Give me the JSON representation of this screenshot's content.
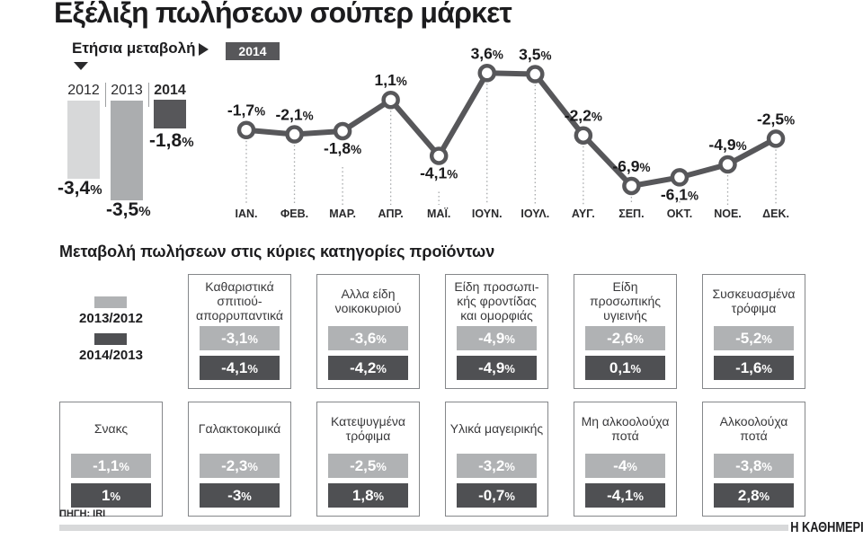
{
  "title": "Εξέλιξη πωλήσεων σούπερ μάρκετ",
  "percent_sign": "%",
  "annual": {
    "label": "Ετήσια μεταβολή",
    "bars": [
      {
        "year": "2012",
        "label": "-3,4"
      },
      {
        "year": "2013",
        "label": "-3,5"
      },
      {
        "year": "2014",
        "label": "-1,8"
      }
    ]
  },
  "categories": {
    "heading": "Μεταβολή πωλήσεων στις κύριες κατηγορίες προϊόντων",
    "legend": [
      {
        "label": "2013/2012",
        "color": "#b0b2b4"
      },
      {
        "label": "2014/2013",
        "color": "#4f5053"
      }
    ],
    "row1": [
      {
        "title": "Καθαριστικά σπιτιού-απορρυπαντικά",
        "light": "-3,1",
        "dark": "-4,1"
      },
      {
        "title": "Αλλα είδη νοικοκυριού",
        "light": "-3,6",
        "dark": "-4,2"
      },
      {
        "title": "Είδη προσωπι- κής φροντίδας και ομορφιάς",
        "light": "-4,9",
        "dark": "-4,9"
      },
      {
        "title": "Είδη προσωπικής υγιεινής",
        "light": "-2,6",
        "dark": "0,1"
      },
      {
        "title": "Συσκευασμένα τρόφιμα",
        "light": "-5,2",
        "dark": "-1,6"
      }
    ],
    "row2": [
      {
        "title": "Σνακς",
        "light": "-1,1",
        "dark": "1"
      },
      {
        "title": "Γαλακτοκομικά",
        "light": "-2,3",
        "dark": "-3"
      },
      {
        "title": "Κατεψυγμένα τρόφιμα",
        "light": "-2,5",
        "dark": "1,8"
      },
      {
        "title": "Υλικά μαγειρικής",
        "light": "-3,2",
        "dark": "-0,7"
      },
      {
        "title": "Μη αλκοολούχα ποτά",
        "light": "-4",
        "dark": "-4,1"
      },
      {
        "title": "Αλκοολούχα ποτά",
        "light": "-3,8",
        "dark": "2,8"
      }
    ]
  },
  "footer": {
    "source": "ΠΗΓΗ: IRI",
    "brand": "Η ΚΑΘΗΜΕΡΙΝΗ"
  },
  "colors": {
    "dark_gray": "#57575a",
    "mid_gray": "#abadaf",
    "light_gray": "#d7d8d9",
    "bar_light": "#b0b2b4",
    "bar_dark": "#4f5053",
    "text": "#1c1c1e"
  },
  "chart_data": [
    {
      "type": "bar",
      "title": "Ετήσια μεταβολή",
      "categories": [
        "2012",
        "2013",
        "2014"
      ],
      "values": [
        -3.4,
        -3.5,
        -1.8
      ],
      "unit": "%",
      "ylim": [
        -4,
        0
      ]
    },
    {
      "type": "line",
      "title": "2014",
      "x": [
        "ΙΑΝ.",
        "ΦΕΒ.",
        "ΜΑΡ.",
        "ΑΠΡ.",
        "ΜΑΪ.",
        "ΙΟΥΝ.",
        "ΙΟΥΛ.",
        "ΑΥΓ.",
        "ΣΕΠ.",
        "ΟΚΤ.",
        "ΝΟΕ.",
        "ΔΕΚ."
      ],
      "values": [
        -1.7,
        -2.1,
        -1.8,
        1.1,
        -4.1,
        3.6,
        3.5,
        -2.2,
        -6.9,
        -6.1,
        -4.9,
        -2.5
      ],
      "labels": [
        "-1,7",
        "-2,1",
        "-1,8",
        "1,1",
        "-4,1",
        "3,6",
        "3,5",
        "-2,2",
        "-6,9",
        "-6,1",
        "-4,9",
        "-2,5"
      ],
      "label_position": [
        "above",
        "above",
        "below",
        "above",
        "below",
        "above",
        "above",
        "above",
        "above",
        "below",
        "above",
        "above"
      ],
      "unit": "%",
      "ylim": [
        -8,
        5
      ],
      "grid": false,
      "legend_position": "top-left"
    },
    {
      "type": "bar",
      "title": "Μεταβολή πωλήσεων στις κύριες κατηγορίες προϊόντων",
      "categories": [
        "Καθαριστικά σπιτιού-απορρυπαντικά",
        "Αλλα είδη νοικοκυριού",
        "Είδη προσωπικής φροντίδας και ομορφιάς",
        "Είδη προσωπικής υγιεινής",
        "Συσκευασμένα τρόφιμα",
        "Σνακς",
        "Γαλακτοκομικά",
        "Κατεψυγμένα τρόφιμα",
        "Υλικά μαγειρικής",
        "Μη αλκοολούχα ποτά",
        "Αλκοολούχα ποτά"
      ],
      "series": [
        {
          "name": "2013/2012",
          "values": [
            -3.1,
            -3.6,
            -4.9,
            -2.6,
            -5.2,
            -1.1,
            -2.3,
            -2.5,
            -3.2,
            -4.0,
            -3.8
          ]
        },
        {
          "name": "2014/2013",
          "values": [
            -4.1,
            -4.2,
            -4.9,
            0.1,
            -1.6,
            1.0,
            -3.0,
            1.8,
            -0.7,
            -4.1,
            2.8
          ]
        }
      ],
      "unit": "%"
    }
  ]
}
